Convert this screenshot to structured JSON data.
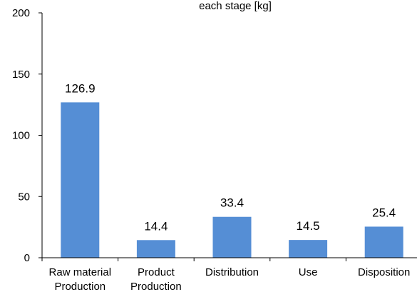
{
  "chart_data": {
    "type": "bar",
    "title": "each stage [kg]",
    "xlabel": "",
    "ylabel": "",
    "ylim": [
      0,
      200
    ],
    "yticks": [
      0,
      50,
      100,
      150,
      200
    ],
    "grid": false,
    "categories": [
      [
        "Raw material",
        "Production"
      ],
      [
        "Product",
        "Production"
      ],
      [
        "Distribution"
      ],
      [
        "Use"
      ],
      [
        "Disposition"
      ]
    ],
    "values": [
      126.9,
      14.4,
      33.4,
      14.5,
      25.4
    ],
    "data_labels": [
      "126.9",
      "14.4",
      "33.4",
      "14.5",
      "25.4"
    ],
    "bar_color": "#558ED5"
  }
}
